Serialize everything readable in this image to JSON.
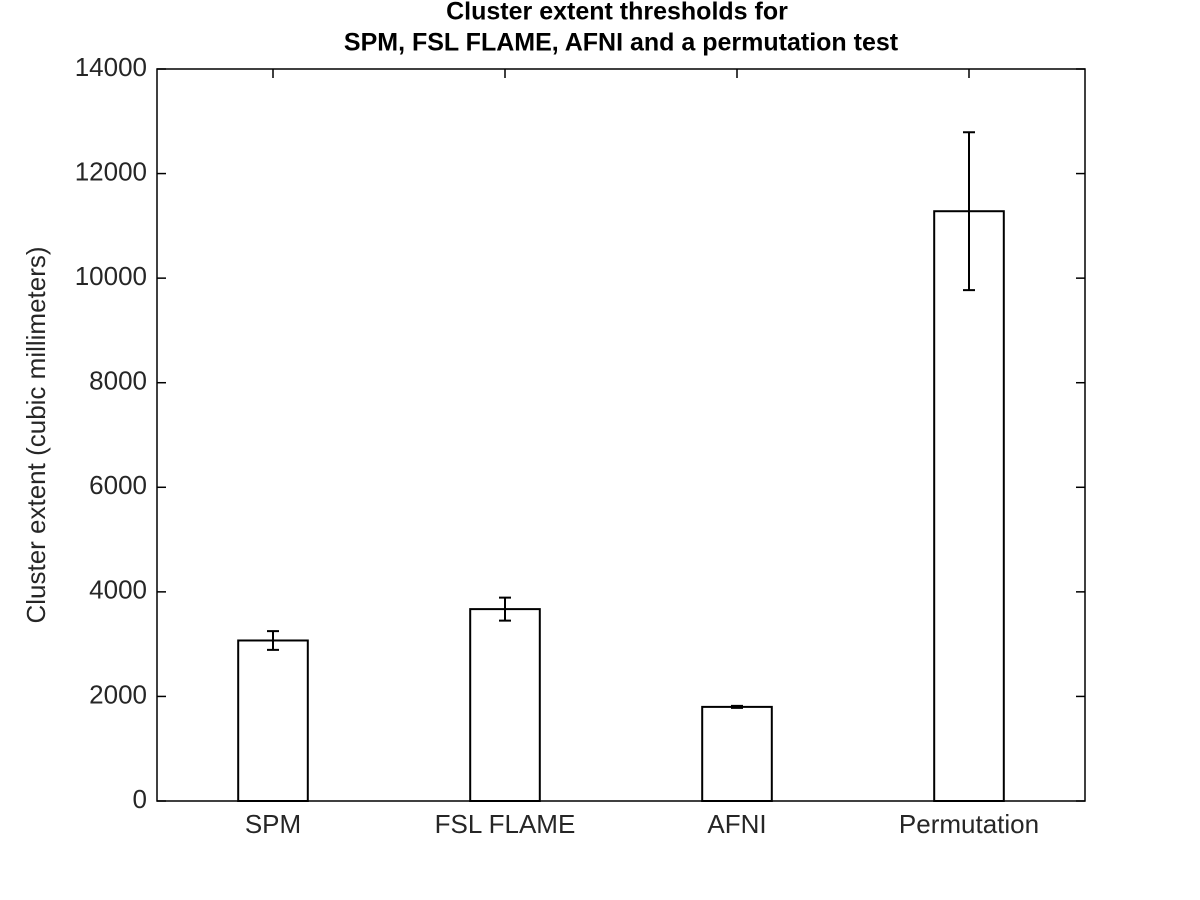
{
  "chart_data": {
    "type": "bar",
    "title": [
      "Cluster extent thresholds for",
      "SPM, FSL FLAME, AFNI and a permutation test"
    ],
    "y_label": "Cluster extent (cubic millimeters)",
    "categories": [
      "SPM",
      "FSL FLAME",
      "AFNI",
      "Permutation"
    ],
    "values": [
      3070,
      3670,
      1800,
      11280
    ],
    "errors": [
      180,
      220,
      20,
      1510
    ],
    "color": "#ffffff",
    "edge_color": "#000000",
    "ylim": [
      0,
      14000
    ],
    "yticks": [
      0,
      2000,
      4000,
      6000,
      8000,
      10000,
      12000,
      14000
    ],
    "grid": false
  }
}
